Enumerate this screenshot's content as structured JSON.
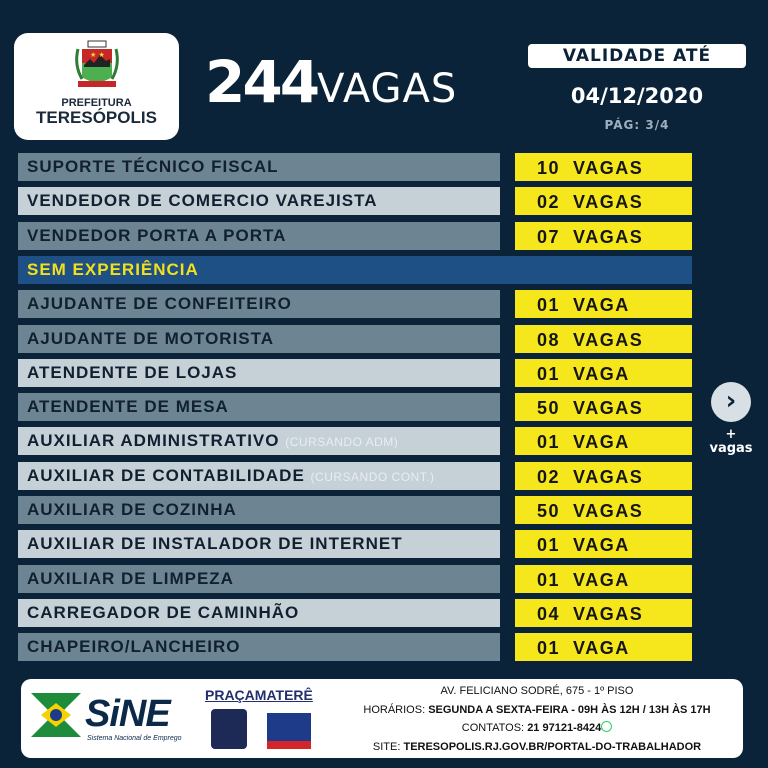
{
  "logo": {
    "line1": "PREFEITURA",
    "line2": "TERESÓPOLIS"
  },
  "header": {
    "count": "244",
    "count_label": "VAGAS",
    "validity_label": "VALIDADE ATÉ",
    "date": "04/12/2020",
    "page": "PÁG:  3/4"
  },
  "jobs_top": [
    {
      "title": "SUPORTE TÉCNICO FISCAL",
      "note": "",
      "qty": "10  VAGAS",
      "shade": "dark"
    },
    {
      "title": "VENDEDOR DE COMERCIO VAREJISTA",
      "note": "",
      "qty": "02  VAGAS",
      "shade": "light"
    },
    {
      "title": "VENDEDOR PORTA A PORTA",
      "note": "",
      "qty": "07  VAGAS",
      "shade": "dark"
    }
  ],
  "section": "SEM EXPERIÊNCIA",
  "jobs": [
    {
      "title": "AJUDANTE DE CONFEITEIRO",
      "note": "",
      "qty": "01  VAGA",
      "shade": "dark"
    },
    {
      "title": "AJUDANTE DE MOTORISTA",
      "note": "",
      "qty": "08  VAGAS",
      "shade": "dark"
    },
    {
      "title": "ATENDENTE DE LOJAS",
      "note": "",
      "qty": "01  VAGA",
      "shade": "light"
    },
    {
      "title": "ATENDENTE DE MESA",
      "note": "",
      "qty": "50  VAGAS",
      "shade": "dark"
    },
    {
      "title": "AUXILIAR ADMINISTRATIVO",
      "note": "(CURSANDO ADM)",
      "qty": "01  VAGA",
      "shade": "light"
    },
    {
      "title": "AUXILIAR DE CONTABILIDADE",
      "note": "(CURSANDO CONT.)",
      "qty": "02  VAGAS",
      "shade": "light"
    },
    {
      "title": "AUXILIAR DE COZINHA",
      "note": "",
      "qty": "50  VAGAS",
      "shade": "dark"
    },
    {
      "title": "AUXILIAR DE INSTALADOR DE INTERNET",
      "note": "",
      "qty": "01  VAGA",
      "shade": "light"
    },
    {
      "title": "AUXILIAR DE LIMPEZA",
      "note": "",
      "qty": "01  VAGA",
      "shade": "dark"
    },
    {
      "title": "CARREGADOR DE CAMINHÃO",
      "note": "",
      "qty": "04  VAGAS",
      "shade": "light"
    },
    {
      "title": "CHAPEIRO/LANCHEIRO",
      "note": "",
      "qty": "01  VAGA",
      "shade": "dark"
    }
  ],
  "next": {
    "icon": "chevron-right-icon",
    "plus": "+",
    "label": "vagas"
  },
  "footer": {
    "sine": "SiNE",
    "sine_sub": "Sistema Nacional de Emprego",
    "praca": "PRAÇAMATERÊ",
    "address": "AV. FELICIANO SODRÉ, 675 - 1º PISO",
    "hours_label": "HORÁRIOS:",
    "hours": "SEGUNDA A SEXTA-FEIRA - 09H ÀS 12H / 13H ÀS 17H",
    "contacts_label": "CONTATOS:",
    "contacts": "21 97121-8424",
    "site_label": "SITE:",
    "site": "TERESOPOLIS.RJ.GOV.BR/PORTAL-DO-TRABALHADOR"
  },
  "colors": {
    "background": "#0b2338",
    "highlight": "#f6e71c",
    "section": "#1e4f85"
  }
}
